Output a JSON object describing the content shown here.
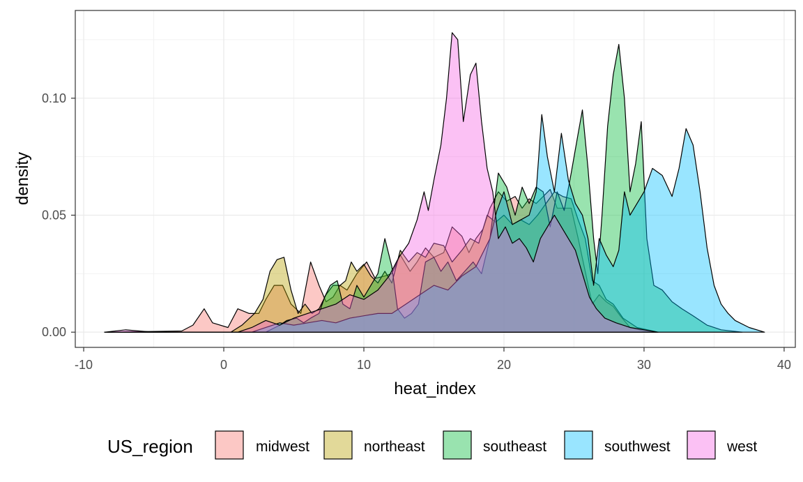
{
  "chart_data": {
    "type": "area",
    "subtype": "density",
    "title": "",
    "xlabel": "heat_index",
    "ylabel": "density",
    "xlim": [
      -10.6,
      40.8
    ],
    "ylim": [
      -0.0065,
      0.1375
    ],
    "x_ticks": [
      -10,
      0,
      10,
      20,
      30,
      40
    ],
    "x_tick_labels": [
      "-10",
      "0",
      "10",
      "20",
      "30",
      "40"
    ],
    "y_ticks": [
      0.0,
      0.05,
      0.1
    ],
    "y_tick_labels": [
      "0.00",
      "0.05",
      "0.10"
    ],
    "grid": true,
    "fill_opacity": 0.4,
    "outline_color": "#000000",
    "legend": {
      "title": "US_region",
      "position": "bottom"
    },
    "series": [
      {
        "name": "midwest",
        "color": "#F8766D",
        "points": [
          [
            -8.5,
            0
          ],
          [
            -3,
            0.0005
          ],
          [
            -2.2,
            0.003
          ],
          [
            -1.4,
            0.01
          ],
          [
            -0.8,
            0.004
          ],
          [
            0.3,
            0.002
          ],
          [
            1,
            0.01
          ],
          [
            1.8,
            0.008
          ],
          [
            2.5,
            0.008
          ],
          [
            3,
            0.014
          ],
          [
            3.6,
            0.02
          ],
          [
            4.2,
            0.02
          ],
          [
            4.8,
            0.012
          ],
          [
            5.5,
            0.008
          ],
          [
            6.2,
            0.03
          ],
          [
            6.8,
            0.02
          ],
          [
            7.3,
            0.013
          ],
          [
            7.8,
            0.015
          ],
          [
            8.3,
            0.02
          ],
          [
            8.8,
            0.018
          ],
          [
            9.5,
            0.025
          ],
          [
            10.2,
            0.03
          ],
          [
            10.8,
            0.023
          ],
          [
            11.5,
            0.024
          ],
          [
            12,
            0.025
          ],
          [
            12.6,
            0.033
          ],
          [
            13.3,
            0.026
          ],
          [
            13.8,
            0.03
          ],
          [
            14.4,
            0.036
          ],
          [
            15,
            0.032
          ],
          [
            15.7,
            0.034
          ],
          [
            16.3,
            0.045
          ],
          [
            17,
            0.041
          ],
          [
            17.5,
            0.034
          ],
          [
            18,
            0.04
          ],
          [
            18.5,
            0.044
          ],
          [
            19,
            0.053
          ],
          [
            19.6,
            0.06
          ],
          [
            20.2,
            0.056
          ],
          [
            20.8,
            0.058
          ],
          [
            21.3,
            0.053
          ],
          [
            21.8,
            0.057
          ],
          [
            22.3,
            0.055
          ],
          [
            22.8,
            0.058
          ],
          [
            23.3,
            0.061
          ],
          [
            23.8,
            0.053
          ],
          [
            24.3,
            0.053
          ],
          [
            24.8,
            0.053
          ],
          [
            25.3,
            0.04
          ],
          [
            25.8,
            0.026
          ],
          [
            26.3,
            0.012
          ],
          [
            26.8,
            0.016
          ],
          [
            27.3,
            0.013
          ],
          [
            27.8,
            0.011
          ],
          [
            28.3,
            0.007
          ],
          [
            29,
            0.002
          ],
          [
            30,
            0.0005
          ],
          [
            31,
            0
          ]
        ]
      },
      {
        "name": "northeast",
        "color": "#B79F00",
        "points": [
          [
            -8.5,
            0
          ],
          [
            0.5,
            0
          ],
          [
            1.3,
            0.003
          ],
          [
            2.2,
            0.008
          ],
          [
            2.8,
            0.014
          ],
          [
            3.3,
            0.026
          ],
          [
            3.8,
            0.031
          ],
          [
            4.3,
            0.032
          ],
          [
            4.8,
            0.018
          ],
          [
            5.3,
            0.008
          ],
          [
            5.8,
            0.012
          ],
          [
            6.3,
            0.008
          ],
          [
            6.8,
            0.01
          ],
          [
            7.3,
            0.016
          ],
          [
            7.8,
            0.02
          ],
          [
            8.3,
            0.02
          ],
          [
            8.7,
            0.022
          ],
          [
            9.1,
            0.03
          ],
          [
            9.5,
            0.026
          ],
          [
            10,
            0.029
          ],
          [
            10.5,
            0.024
          ],
          [
            11,
            0.021
          ],
          [
            11.5,
            0.026
          ],
          [
            12,
            0.021
          ],
          [
            12.6,
            0.035
          ],
          [
            13.2,
            0.03
          ],
          [
            13.8,
            0.034
          ],
          [
            14.4,
            0.032
          ],
          [
            15,
            0.038
          ],
          [
            15.7,
            0.037
          ],
          [
            16.3,
            0.03
          ],
          [
            17,
            0.035
          ],
          [
            17.6,
            0.04
          ],
          [
            18.2,
            0.038
          ],
          [
            18.8,
            0.05
          ],
          [
            19.4,
            0.047
          ],
          [
            20,
            0.05
          ],
          [
            20.6,
            0.046
          ],
          [
            21.2,
            0.048
          ],
          [
            21.8,
            0.046
          ],
          [
            22.4,
            0.05
          ],
          [
            23,
            0.055
          ],
          [
            23.6,
            0.06
          ],
          [
            24.2,
            0.058
          ],
          [
            24.8,
            0.057
          ],
          [
            25.3,
            0.048
          ],
          [
            25.8,
            0.04
          ],
          [
            26.3,
            0.022
          ],
          [
            26.8,
            0.02
          ],
          [
            27.3,
            0.014
          ],
          [
            27.8,
            0.012
          ],
          [
            28.5,
            0.006
          ],
          [
            29.5,
            0.002
          ],
          [
            31,
            0
          ]
        ]
      },
      {
        "name": "southeast",
        "color": "#00BA38",
        "points": [
          [
            -8.5,
            0
          ],
          [
            3,
            0
          ],
          [
            4,
            0.003
          ],
          [
            4.5,
            0.005
          ],
          [
            5.2,
            0.006
          ],
          [
            5.7,
            0.004
          ],
          [
            6.2,
            0.006
          ],
          [
            6.8,
            0.008
          ],
          [
            7.2,
            0.015
          ],
          [
            7.6,
            0.02
          ],
          [
            8.1,
            0.022
          ],
          [
            8.5,
            0.012
          ],
          [
            9,
            0.01
          ],
          [
            9.5,
            0.02
          ],
          [
            10,
            0.015
          ],
          [
            10.5,
            0.02
          ],
          [
            11,
            0.025
          ],
          [
            11.5,
            0.04
          ],
          [
            12,
            0.028
          ],
          [
            12.4,
            0.01
          ],
          [
            12.9,
            0.006
          ],
          [
            13.4,
            0.008
          ],
          [
            13.9,
            0.012
          ],
          [
            14.4,
            0.03
          ],
          [
            15,
            0.032
          ],
          [
            15.5,
            0.026
          ],
          [
            16,
            0.03
          ],
          [
            16.6,
            0.022
          ],
          [
            17.2,
            0.026
          ],
          [
            17.8,
            0.03
          ],
          [
            18.4,
            0.025
          ],
          [
            19,
            0.04
          ],
          [
            19.6,
            0.068
          ],
          [
            20.2,
            0.062
          ],
          [
            20.8,
            0.05
          ],
          [
            21.3,
            0.062
          ],
          [
            21.8,
            0.055
          ],
          [
            22.3,
            0.062
          ],
          [
            22.8,
            0.06
          ],
          [
            23.3,
            0.045
          ],
          [
            23.8,
            0.06
          ],
          [
            24.3,
            0.052
          ],
          [
            24.8,
            0.068
          ],
          [
            25.3,
            0.085
          ],
          [
            25.6,
            0.095
          ],
          [
            26,
            0.07
          ],
          [
            26.4,
            0.04
          ],
          [
            26.7,
            0.025
          ],
          [
            27,
            0.05
          ],
          [
            27.4,
            0.088
          ],
          [
            27.8,
            0.11
          ],
          [
            28.2,
            0.123
          ],
          [
            28.6,
            0.1
          ],
          [
            29,
            0.06
          ],
          [
            29.4,
            0.072
          ],
          [
            29.8,
            0.09
          ],
          [
            30.2,
            0.04
          ],
          [
            30.7,
            0.02
          ],
          [
            31.3,
            0.018
          ],
          [
            32,
            0.013
          ],
          [
            32.7,
            0.01
          ],
          [
            33.5,
            0.007
          ],
          [
            34.5,
            0.003
          ],
          [
            35.5,
            0.001
          ],
          [
            37,
            0
          ]
        ]
      },
      {
        "name": "southwest",
        "color": "#00BFFF",
        "points": [
          [
            -8.5,
            0
          ],
          [
            2,
            0
          ],
          [
            3,
            0.002
          ],
          [
            4,
            0.004
          ],
          [
            5,
            0.003
          ],
          [
            6,
            0.004
          ],
          [
            7,
            0.005
          ],
          [
            8,
            0.004
          ],
          [
            9,
            0.006
          ],
          [
            10,
            0.007
          ],
          [
            11,
            0.008
          ],
          [
            12,
            0.008
          ],
          [
            13,
            0.012
          ],
          [
            14,
            0.016
          ],
          [
            15,
            0.02
          ],
          [
            16,
            0.018
          ],
          [
            17,
            0.024
          ],
          [
            18,
            0.028
          ],
          [
            19,
            0.04
          ],
          [
            19.5,
            0.052
          ],
          [
            20,
            0.06
          ],
          [
            20.6,
            0.046
          ],
          [
            21.2,
            0.048
          ],
          [
            21.8,
            0.05
          ],
          [
            22.3,
            0.06
          ],
          [
            22.7,
            0.093
          ],
          [
            23.1,
            0.075
          ],
          [
            23.6,
            0.06
          ],
          [
            24.1,
            0.085
          ],
          [
            24.6,
            0.065
          ],
          [
            25.1,
            0.055
          ],
          [
            25.6,
            0.05
          ],
          [
            26,
            0.04
          ],
          [
            26.4,
            0.02
          ],
          [
            26.8,
            0.04
          ],
          [
            27.3,
            0.033
          ],
          [
            27.8,
            0.028
          ],
          [
            28.2,
            0.035
          ],
          [
            28.6,
            0.06
          ],
          [
            29,
            0.05
          ],
          [
            29.5,
            0.055
          ],
          [
            30,
            0.06
          ],
          [
            30.6,
            0.07
          ],
          [
            31.3,
            0.067
          ],
          [
            32,
            0.058
          ],
          [
            32.5,
            0.07
          ],
          [
            33,
            0.087
          ],
          [
            33.5,
            0.08
          ],
          [
            34,
            0.06
          ],
          [
            34.5,
            0.036
          ],
          [
            35,
            0.02
          ],
          [
            35.5,
            0.012
          ],
          [
            36,
            0.008
          ],
          [
            36.5,
            0.005
          ],
          [
            37.5,
            0.002
          ],
          [
            38.6,
            0
          ]
        ]
      },
      {
        "name": "west",
        "color": "#F564E3",
        "points": [
          [
            -8.5,
            0
          ],
          [
            -7,
            0.001
          ],
          [
            -5,
            0
          ],
          [
            1,
            0
          ],
          [
            2,
            0.002
          ],
          [
            3,
            0.005
          ],
          [
            4,
            0.003
          ],
          [
            5,
            0.006
          ],
          [
            6,
            0.008
          ],
          [
            7,
            0.01
          ],
          [
            8,
            0.012
          ],
          [
            9,
            0.016
          ],
          [
            10,
            0.014
          ],
          [
            11,
            0.018
          ],
          [
            11.8,
            0.024
          ],
          [
            12.5,
            0.032
          ],
          [
            13.2,
            0.038
          ],
          [
            13.8,
            0.048
          ],
          [
            14.3,
            0.06
          ],
          [
            14.6,
            0.052
          ],
          [
            15,
            0.065
          ],
          [
            15.5,
            0.08
          ],
          [
            15.9,
            0.1
          ],
          [
            16.3,
            0.128
          ],
          [
            16.7,
            0.125
          ],
          [
            17.1,
            0.09
          ],
          [
            17.6,
            0.11
          ],
          [
            18,
            0.115
          ],
          [
            18.4,
            0.09
          ],
          [
            18.8,
            0.07
          ],
          [
            19.2,
            0.06
          ],
          [
            19.6,
            0.04
          ],
          [
            20.1,
            0.045
          ],
          [
            20.6,
            0.038
          ],
          [
            21.1,
            0.04
          ],
          [
            21.6,
            0.036
          ],
          [
            22.1,
            0.03
          ],
          [
            22.6,
            0.04
          ],
          [
            23.1,
            0.045
          ],
          [
            23.6,
            0.05
          ],
          [
            24.1,
            0.045
          ],
          [
            24.6,
            0.04
          ],
          [
            25.1,
            0.035
          ],
          [
            25.6,
            0.025
          ],
          [
            26.1,
            0.015
          ],
          [
            26.6,
            0.01
          ],
          [
            27.2,
            0.006
          ],
          [
            28,
            0.004
          ],
          [
            29,
            0.002
          ],
          [
            30,
            0.001
          ],
          [
            31,
            0
          ]
        ]
      }
    ]
  }
}
